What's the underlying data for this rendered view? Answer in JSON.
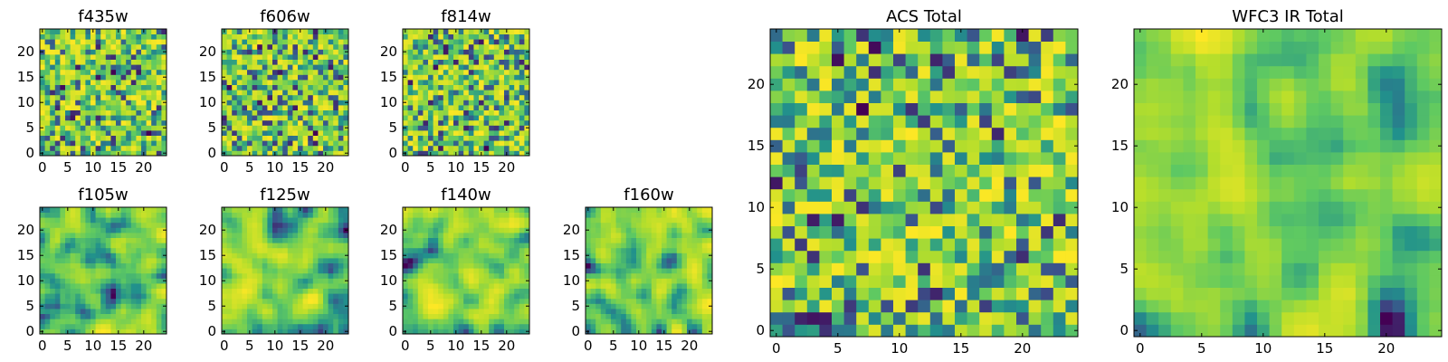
{
  "figure": {
    "description_type": "heatmap grid",
    "colormap": [
      "#440154",
      "#3b528b",
      "#21918c",
      "#5ec962",
      "#b5de2b",
      "#fde725"
    ]
  },
  "chart_data": [
    {
      "type": "heatmap",
      "title": "f435w",
      "grid_size": 25,
      "xlim": [
        0,
        24
      ],
      "ylim": [
        0,
        24
      ],
      "xticks": [
        0,
        5,
        10,
        15,
        20
      ],
      "yticks": [
        0,
        5,
        10,
        15,
        20
      ],
      "seed": 11,
      "style": "noise"
    },
    {
      "type": "heatmap",
      "title": "f606w",
      "grid_size": 25,
      "xlim": [
        0,
        24
      ],
      "ylim": [
        0,
        24
      ],
      "xticks": [
        0,
        5,
        10,
        15,
        20
      ],
      "yticks": [
        0,
        5,
        10,
        15,
        20
      ],
      "seed": 23,
      "style": "noise"
    },
    {
      "type": "heatmap",
      "title": "f814w",
      "grid_size": 25,
      "xlim": [
        0,
        24
      ],
      "ylim": [
        0,
        24
      ],
      "xticks": [
        0,
        5,
        10,
        15,
        20
      ],
      "yticks": [
        0,
        5,
        10,
        15,
        20
      ],
      "seed": 37,
      "style": "noise"
    },
    {
      "type": "heatmap",
      "title": "f105w",
      "grid_size": 25,
      "xlim": [
        0,
        24
      ],
      "ylim": [
        0,
        24
      ],
      "xticks": [
        0,
        5,
        10,
        15,
        20
      ],
      "yticks": [
        0,
        5,
        10,
        15,
        20
      ],
      "seed": 41,
      "style": "smooth"
    },
    {
      "type": "heatmap",
      "title": "f125w",
      "grid_size": 25,
      "xlim": [
        0,
        24
      ],
      "ylim": [
        0,
        24
      ],
      "xticks": [
        0,
        5,
        10,
        15,
        20
      ],
      "yticks": [
        0,
        5,
        10,
        15,
        20
      ],
      "seed": 53,
      "style": "smooth"
    },
    {
      "type": "heatmap",
      "title": "f140w",
      "grid_size": 25,
      "xlim": [
        0,
        24
      ],
      "ylim": [
        0,
        24
      ],
      "xticks": [
        0,
        5,
        10,
        15,
        20
      ],
      "yticks": [
        0,
        5,
        10,
        15,
        20
      ],
      "seed": 67,
      "style": "smooth"
    },
    {
      "type": "heatmap",
      "title": "f160w",
      "grid_size": 25,
      "xlim": [
        0,
        24
      ],
      "ylim": [
        0,
        24
      ],
      "xticks": [
        0,
        5,
        10,
        15,
        20
      ],
      "yticks": [
        0,
        5,
        10,
        15,
        20
      ],
      "seed": 79,
      "style": "smooth"
    },
    {
      "type": "heatmap",
      "title": "ACS Total",
      "grid_size": 25,
      "xlim": [
        0,
        24
      ],
      "ylim": [
        0,
        24
      ],
      "xticks": [
        0,
        5,
        10,
        15,
        20
      ],
      "yticks": [
        0,
        5,
        10,
        15,
        20
      ],
      "seed": 97,
      "style": "noise"
    },
    {
      "type": "heatmap",
      "title": "WFC3 IR Total",
      "grid_size": 25,
      "xlim": [
        0,
        24
      ],
      "ylim": [
        0,
        24
      ],
      "xticks": [
        0,
        5,
        10,
        15,
        20
      ],
      "yticks": [
        0,
        5,
        10,
        15,
        20
      ],
      "seed": 131,
      "style": "smooth"
    }
  ]
}
